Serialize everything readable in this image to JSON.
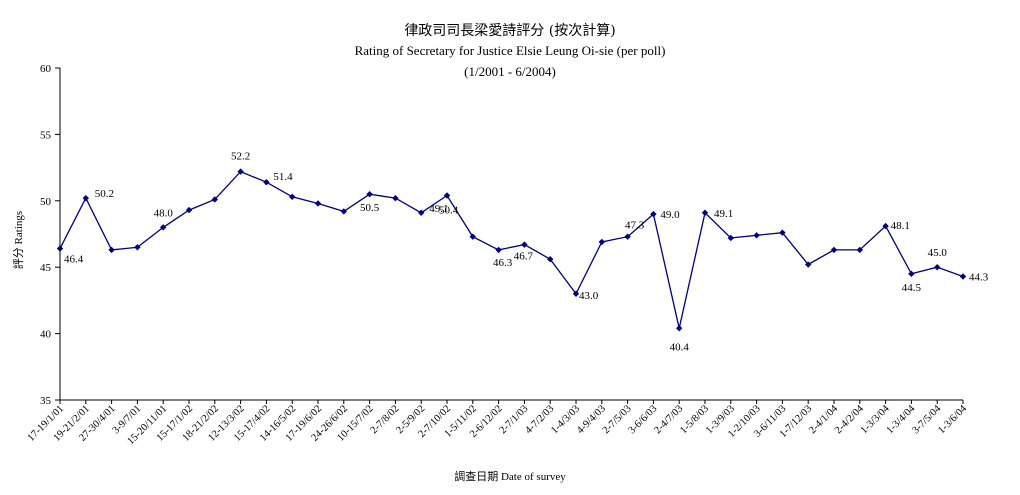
{
  "chart_data": {
    "type": "line",
    "title": "律政司司長梁愛詩評分 (按次計算)",
    "subtitle": "Rating of Secretary for Justice Elsie Leung Oi-sie  (per poll)",
    "period": "(1/2001 - 6/2004)",
    "xlabel": "調查日期 Date of survey",
    "ylabel": "評分 Ratings",
    "ylim": [
      35,
      60
    ],
    "yticks": [
      35,
      40,
      45,
      50,
      55,
      60
    ],
    "grid": false,
    "legend": "none",
    "line_color": "#000080",
    "marker": "diamond",
    "categories": [
      "17-19/1/01",
      "19-21/2/01",
      "27-30/4/01",
      "3-9/7/01",
      "15-20/11/01",
      "15-17/1/02",
      "18-21/2/02",
      "12-13/3/02",
      "15-17/4/02",
      "14-16/5/02",
      "17-19/6/02",
      "24-26/6/02",
      "10-15/7/02",
      "2-7/8/02",
      "2-5/9/02",
      "2-7/10/02",
      "1-5/11/02",
      "2-6/12/02",
      "2-7/1/03",
      "4-7/2/03",
      "1-4/3/03",
      "4-9/4/03",
      "2-7/5/03",
      "3-6/6/03",
      "2-4/7/03",
      "1-5/8/03",
      "1-3/9/03",
      "1-2/10/03",
      "3-6/11/03",
      "1-7/12/03",
      "2-4/1/04",
      "2-4/2/04",
      "1-3/3/04",
      "1-3/4/04",
      "3-7/5/04",
      "1-3/6/04"
    ],
    "values": [
      46.4,
      50.2,
      46.3,
      46.5,
      48.0,
      49.3,
      50.1,
      52.2,
      51.4,
      50.3,
      49.8,
      49.2,
      50.5,
      50.2,
      49.1,
      50.4,
      47.3,
      46.3,
      46.7,
      45.6,
      43.0,
      46.9,
      47.3,
      49.0,
      40.4,
      49.1,
      47.2,
      47.4,
      47.6,
      45.2,
      46.3,
      46.3,
      48.1,
      44.5,
      45.0,
      44.3
    ],
    "data_labels": [
      {
        "index": 0,
        "text": "46.4"
      },
      {
        "index": 1,
        "text": "50.2"
      },
      {
        "index": 4,
        "text": "48.0"
      },
      {
        "index": 7,
        "text": "52.2"
      },
      {
        "index": 8,
        "text": "51.4"
      },
      {
        "index": 12,
        "text": "50.5"
      },
      {
        "index": 14,
        "text": "49.1"
      },
      {
        "index": 15,
        "text": "50.4"
      },
      {
        "index": 17,
        "text": "46.3"
      },
      {
        "index": 18,
        "text": "46.7"
      },
      {
        "index": 20,
        "text": "43.0"
      },
      {
        "index": 22,
        "text": "47.3"
      },
      {
        "index": 23,
        "text": "49.0"
      },
      {
        "index": 24,
        "text": "40.4"
      },
      {
        "index": 25,
        "text": "49.1"
      },
      {
        "index": 32,
        "text": "48.1"
      },
      {
        "index": 33,
        "text": "44.5"
      },
      {
        "index": 34,
        "text": "45.0"
      },
      {
        "index": 35,
        "text": "44.3"
      }
    ]
  }
}
